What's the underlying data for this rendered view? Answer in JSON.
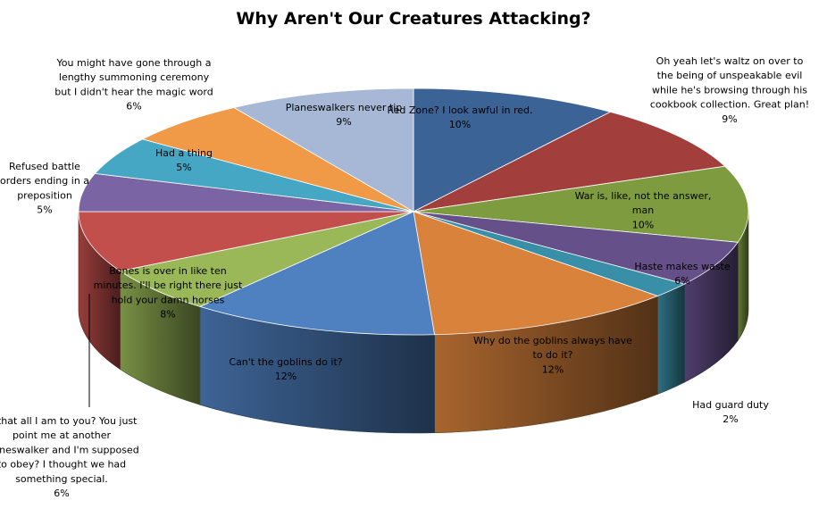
{
  "chart_data": {
    "type": "pie",
    "title": "Why Aren't Our Creatures Attacking?",
    "style": "3d",
    "legend": "none",
    "categories": [
      "Red Zone? I look awful in red.",
      "Oh yeah let's waltz  on over to the being of unspeakable evil while he's browsing through his cookbook collection. Great plan!",
      "War is, like, not the answer, man",
      "Haste makes waste",
      "Had guard duty",
      "Why do the goblins always have to do it?",
      "Can't the goblins do it?",
      "Is that all I am to you? You just point me at another planeswalker and I'm supposed to obey? I thought we had something special.",
      "Bones is over in like ten minutes. I'll be right there just hold your damn horses",
      "Refused battle orders ending in a preposition",
      "Had a thing",
      "You might have gone through a lengthy summoning ceremony but I didn't hear the magic word",
      "Planeswalkers never tip"
    ],
    "values": [
      10,
      9,
      10,
      6,
      2,
      12,
      12,
      6,
      8,
      5,
      5,
      6,
      9
    ],
    "value_labels": [
      "10%",
      "9%",
      "10%",
      "6%",
      "2%",
      "12%",
      "12%",
      "6%",
      "8%",
      "5%",
      "5%",
      "6%",
      "9%"
    ],
    "colors": [
      "#3c6396",
      "#a23e3b",
      "#7e9c3f",
      "#65508a",
      "#3a8fa8",
      "#d8823b",
      "#4f80c0",
      "#9ab858",
      "#c24f4c",
      "#7a64a3",
      "#45a7c4",
      "#f09a48",
      "#a7b8d7"
    ],
    "label_lines": [
      [
        "Red Zone? I look awful in red.",
        "10%"
      ],
      [
        "Oh yeah let's waltz  on over to",
        "the being of unspeakable evil",
        "while he's browsing through his",
        "cookbook collection. Great plan!",
        "9%"
      ],
      [
        "War is, like, not the answer,",
        "man",
        "10%"
      ],
      [
        "Haste makes waste",
        "6%"
      ],
      [
        "Had guard duty",
        "2%"
      ],
      [
        "Why do the goblins always have",
        "to do it?",
        "12%"
      ],
      [
        "Can't the goblins do it?",
        "12%"
      ],
      [
        "Is that all I am to you? You just",
        "point me at another",
        "planeswalker and I'm supposed",
        "to obey? I thought we had",
        "something special.",
        "6%"
      ],
      [
        "Bones is over in like ten",
        "minutes. I'll be right there just",
        "hold your damn horses",
        "8%"
      ],
      [
        "Refused battle",
        "orders ending in a",
        "preposition",
        "5%"
      ],
      [
        "Had a thing",
        "5%"
      ],
      [
        "You might have gone through a",
        "lengthy summoning ceremony",
        "but I didn't hear the magic word",
        "6%"
      ],
      [
        "Planeswalkers never tip",
        "9%"
      ]
    ]
  }
}
